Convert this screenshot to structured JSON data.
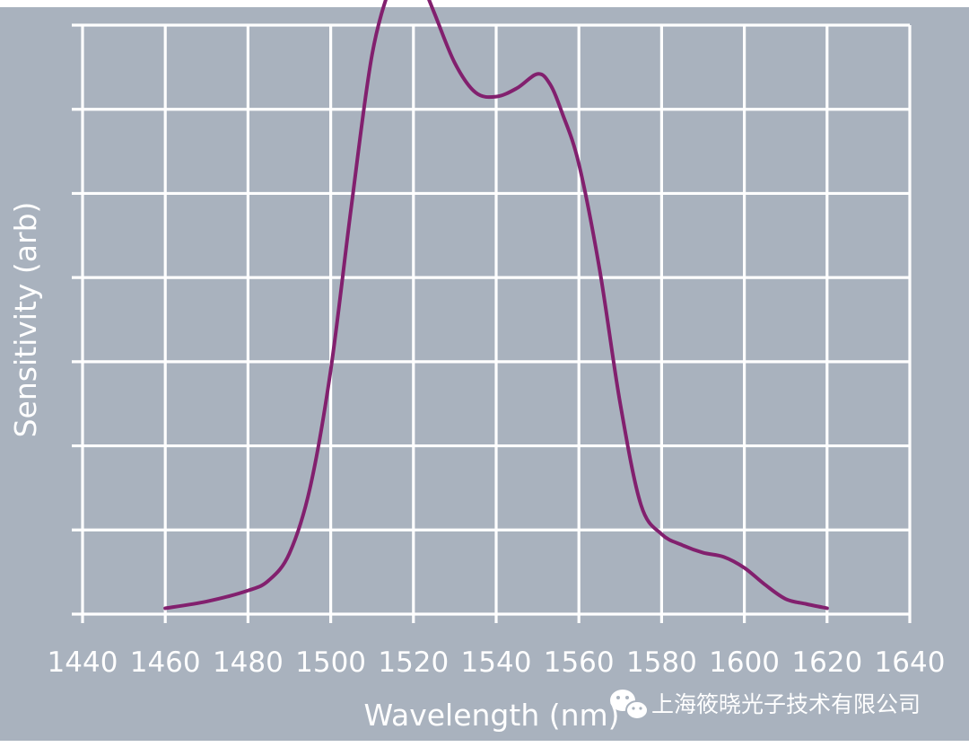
{
  "chart_data": {
    "type": "line",
    "xlabel": "Wavelength (nm)",
    "ylabel": "Sensitivity (arb)",
    "xlim": [
      1440,
      1640
    ],
    "x_ticks": [
      "1440",
      "1460",
      "1480",
      "1500",
      "1520",
      "1540",
      "1560",
      "1580",
      "1600",
      "1620",
      "1640"
    ],
    "y_gridlines": 7,
    "y_tick_labels": "none",
    "grid": true,
    "colors": {
      "background": "#a9b2be",
      "grid": "#ffffff",
      "line": "#82206e",
      "text": "#ffffff"
    },
    "series": [
      {
        "x": [
          1460,
          1470,
          1480,
          1485,
          1490,
          1495,
          1500,
          1505,
          1510,
          1515,
          1518,
          1520,
          1525,
          1530,
          1535,
          1540,
          1545,
          1550,
          1553,
          1556,
          1560,
          1565,
          1570,
          1575,
          1580,
          1585,
          1590,
          1595,
          1600,
          1605,
          1610,
          1615,
          1620
        ],
        "y": [
          0.07,
          0.15,
          0.28,
          0.4,
          0.72,
          1.5,
          2.9,
          4.85,
          6.65,
          7.55,
          7.85,
          7.75,
          7.15,
          6.55,
          6.2,
          6.15,
          6.25,
          6.42,
          6.3,
          5.95,
          5.35,
          4.1,
          2.5,
          1.3,
          0.95,
          0.82,
          0.73,
          0.68,
          0.55,
          0.35,
          0.18,
          0.12,
          0.07
        ]
      }
    ]
  },
  "watermark": {
    "icon": "wechat-icon",
    "text": "上海筱晓光子技术有限公司"
  }
}
